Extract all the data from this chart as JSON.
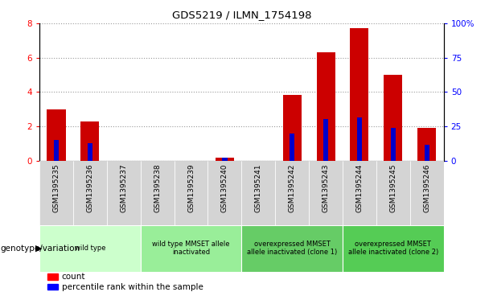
{
  "title": "GDS5219 / ILMN_1754198",
  "samples": [
    "GSM1395235",
    "GSM1395236",
    "GSM1395237",
    "GSM1395238",
    "GSM1395239",
    "GSM1395240",
    "GSM1395241",
    "GSM1395242",
    "GSM1395243",
    "GSM1395244",
    "GSM1395245",
    "GSM1395246"
  ],
  "counts": [
    3.0,
    2.3,
    0.0,
    0.0,
    0.0,
    0.15,
    0.0,
    3.85,
    6.3,
    7.7,
    5.0,
    1.9
  ],
  "percentile_ranks": [
    1.2,
    1.0,
    0.0,
    0.0,
    0.0,
    0.15,
    0.0,
    1.6,
    2.4,
    2.5,
    1.9,
    0.9
  ],
  "ylim_left": [
    0,
    8
  ],
  "ylim_right": [
    0,
    100
  ],
  "yticks_left": [
    0,
    2,
    4,
    6,
    8
  ],
  "yticks_right": [
    0,
    25,
    50,
    75,
    100
  ],
  "yticklabels_right": [
    "0",
    "25",
    "50",
    "75",
    "100%"
  ],
  "bar_color": "#cc0000",
  "percentile_color": "#0000cc",
  "groups": [
    {
      "label": "wild type",
      "indices": [
        0,
        1,
        2
      ],
      "color": "#ccffcc"
    },
    {
      "label": "wild type MMSET allele\ninactivated",
      "indices": [
        3,
        4,
        5
      ],
      "color": "#99ee99"
    },
    {
      "label": "overexpressed MMSET\nallele inactivated (clone 1)",
      "indices": [
        6,
        7,
        8
      ],
      "color": "#55cc55"
    },
    {
      "label": "overexpressed MMSET\nallele inactivated (clone 2)",
      "indices": [
        9,
        10,
        11
      ],
      "color": "#55cc55"
    }
  ],
  "legend_count_label": "count",
  "legend_percentile_label": "percentile rank within the sample",
  "genotype_label": "genotype/variation",
  "grid_color": "#888888",
  "plot_bg_color": "#ffffff",
  "tick_area_bg": "#dddddd"
}
